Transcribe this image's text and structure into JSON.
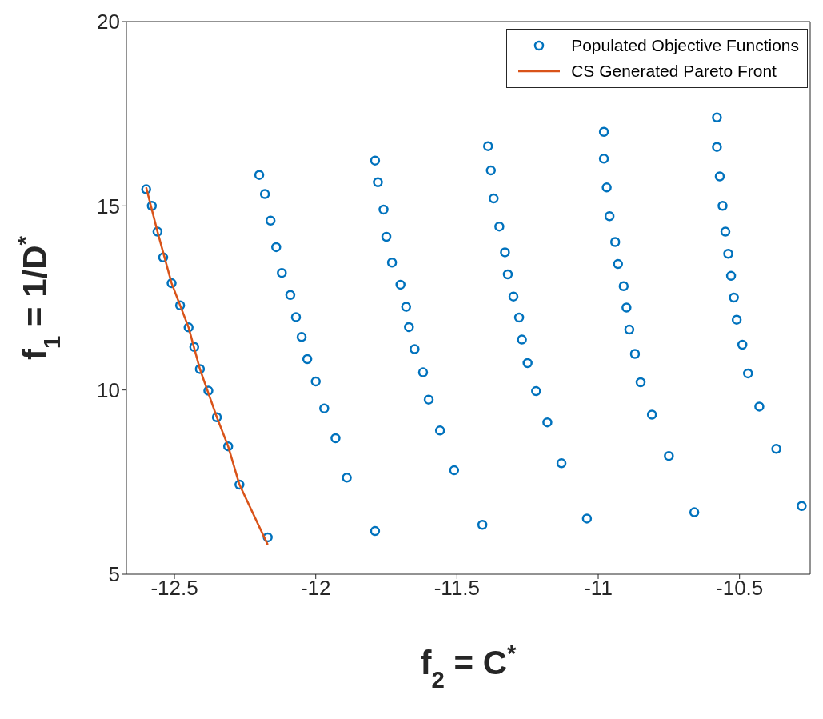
{
  "chart_data": {
    "type": "scatter",
    "xlabel": "f$_{2}$ = C$^{*}$",
    "ylabel": "f$_{1}$ = 1/D$^{*}$",
    "xlim": [
      -12.67,
      -10.25
    ],
    "ylim": [
      5,
      20
    ],
    "xticks": [
      -12.5,
      -12,
      -11.5,
      -11,
      -10.5
    ],
    "yticks": [
      5,
      10,
      15,
      20
    ],
    "legend": "top right",
    "series": [
      {
        "name": "Populated Objective Functions",
        "marker": "circle",
        "color": "#0072bd",
        "x": [
          -12.17,
          -11.79,
          -11.41,
          -11.04,
          -10.66,
          -10.28,
          -12.27,
          -11.89,
          -11.51,
          -11.13,
          -10.75,
          -10.37,
          -12.31,
          -11.93,
          -11.56,
          -11.18,
          -10.81,
          -10.43,
          -12.35,
          -11.97,
          -11.6,
          -11.22,
          -10.85,
          -10.47,
          -12.38,
          -12.0,
          -11.62,
          -11.25,
          -10.87,
          -10.49,
          -12.41,
          -12.03,
          -11.65,
          -11.27,
          -10.89,
          -10.51,
          -12.43,
          -12.05,
          -11.67,
          -11.28,
          -10.9,
          -10.52,
          -12.45,
          -12.07,
          -11.68,
          -11.3,
          -10.91,
          -10.53,
          -12.48,
          -12.09,
          -11.7,
          -11.32,
          -10.93,
          -10.54,
          -12.51,
          -12.12,
          -11.73,
          -11.33,
          -10.94,
          -10.55,
          -12.54,
          -12.14,
          -11.75,
          -11.35,
          -10.96,
          -10.56,
          -12.56,
          -12.16,
          -11.76,
          -11.37,
          -10.97,
          -10.57,
          -12.58,
          -12.18,
          -11.78,
          -11.38,
          -10.98,
          -10.58,
          -12.6,
          -12.2,
          -11.79,
          -11.39,
          -10.98,
          -10.58
        ],
        "values": [
          6.0,
          6.17,
          6.34,
          6.51,
          6.68,
          6.85,
          7.43,
          7.62,
          7.82,
          8.01,
          8.21,
          8.4,
          8.47,
          8.69,
          8.9,
          9.12,
          9.33,
          9.55,
          9.26,
          9.5,
          9.74,
          9.97,
          10.21,
          10.45,
          9.98,
          10.23,
          10.48,
          10.73,
          10.98,
          11.23,
          10.57,
          10.84,
          11.11,
          11.37,
          11.64,
          11.91,
          11.17,
          11.44,
          11.71,
          11.97,
          12.24,
          12.51,
          11.7,
          11.98,
          12.26,
          12.54,
          12.82,
          13.1,
          12.3,
          12.58,
          12.86,
          13.14,
          13.42,
          13.7,
          12.9,
          13.18,
          13.46,
          13.74,
          14.02,
          14.3,
          13.6,
          13.88,
          14.16,
          14.44,
          14.72,
          15.0,
          14.3,
          14.6,
          14.9,
          15.2,
          15.5,
          15.8,
          15.0,
          15.32,
          15.64,
          15.96,
          16.28,
          16.6,
          15.45,
          15.84,
          16.23,
          16.62,
          17.01,
          17.4
        ]
      },
      {
        "name": "CS Generated Pareto Front",
        "type": "line",
        "marker": "none",
        "line_style": "solid",
        "color": "#d95319",
        "x": [
          -12.6,
          -12.56,
          -12.51,
          -12.45,
          -12.41,
          -12.35,
          -12.31,
          -12.27,
          -12.17
        ],
        "values": [
          15.5,
          14.3,
          12.9,
          11.7,
          10.57,
          9.26,
          8.47,
          7.43,
          5.8
        ]
      }
    ]
  }
}
